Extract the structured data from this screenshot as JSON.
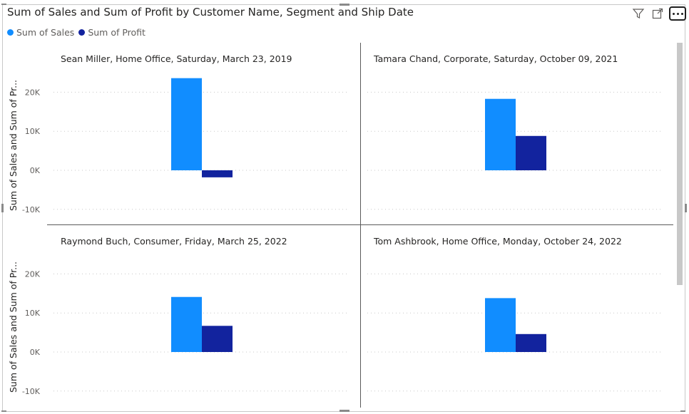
{
  "visual": {
    "title": "Sum of Sales and Sum of Profit by Customer Name, Segment and Ship Date",
    "y_axis_title": "Sum of Sales and Sum of Pr..."
  },
  "toolbar": {
    "filter_icon": "filter-icon",
    "focus_icon": "focus-mode-icon",
    "more_icon": "more-options-icon"
  },
  "legend": {
    "items": [
      {
        "label": "Sum of Sales",
        "color": "#118DFF"
      },
      {
        "label": "Sum of Profit",
        "color": "#12239E"
      }
    ]
  },
  "chart_data": {
    "type": "bar",
    "layout": "small-multiples",
    "series_names": [
      "Sum of Sales",
      "Sum of Profit"
    ],
    "colors": [
      "#118DFF",
      "#12239E"
    ],
    "ylim": [
      -10000,
      27000
    ],
    "yticks": [
      -10000,
      0,
      10000,
      20000
    ],
    "ytick_labels": [
      "-10K",
      "0K",
      "10K",
      "20K"
    ],
    "ylabel": "Sum of Sales and Sum of Pr...",
    "grid": true,
    "legend_position": "top-left",
    "panels": [
      {
        "title": "Sean Miller, Home Office, Saturday, March 23, 2019",
        "values": [
          23600,
          -1800
        ]
      },
      {
        "title": "Tamara Chand, Corporate, Saturday, October 09, 2021",
        "values": [
          18300,
          8800
        ]
      },
      {
        "title": "Raymond Buch, Consumer, Friday, March 25, 2022",
        "values": [
          14100,
          6700
        ]
      },
      {
        "title": "Tom Ashbrook, Home Office, Monday, October 24, 2022",
        "values": [
          13800,
          4600
        ]
      }
    ]
  }
}
